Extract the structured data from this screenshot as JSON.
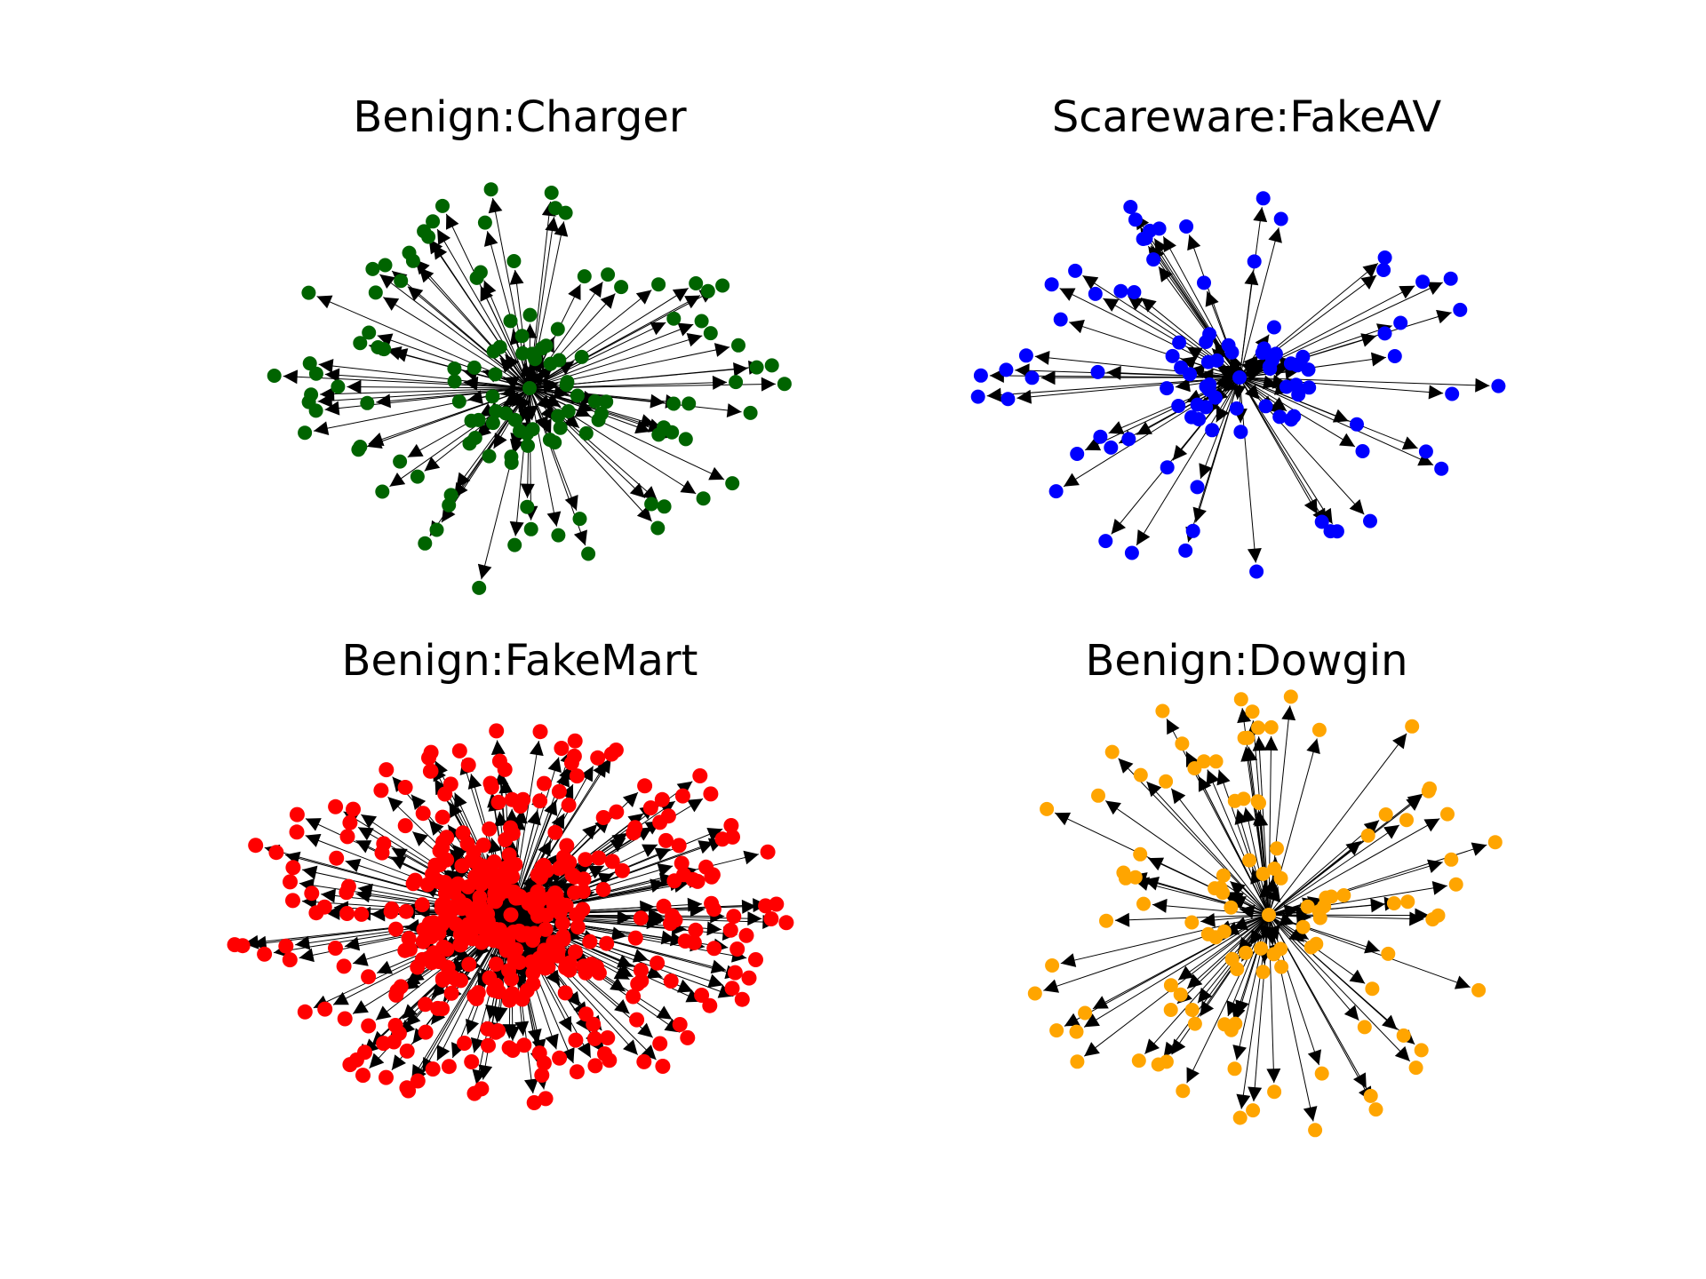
{
  "figure": {
    "panels": [
      {
        "title": "Benign:Charger",
        "node_color": "#006400"
      },
      {
        "title": "Scareware:FakeAV",
        "node_color": "#0000ff"
      },
      {
        "title": "Benign:FakeMart",
        "node_color": "#ff0000"
      },
      {
        "title": "Benign:Dowgin",
        "node_color": "#ffa500"
      }
    ]
  }
}
